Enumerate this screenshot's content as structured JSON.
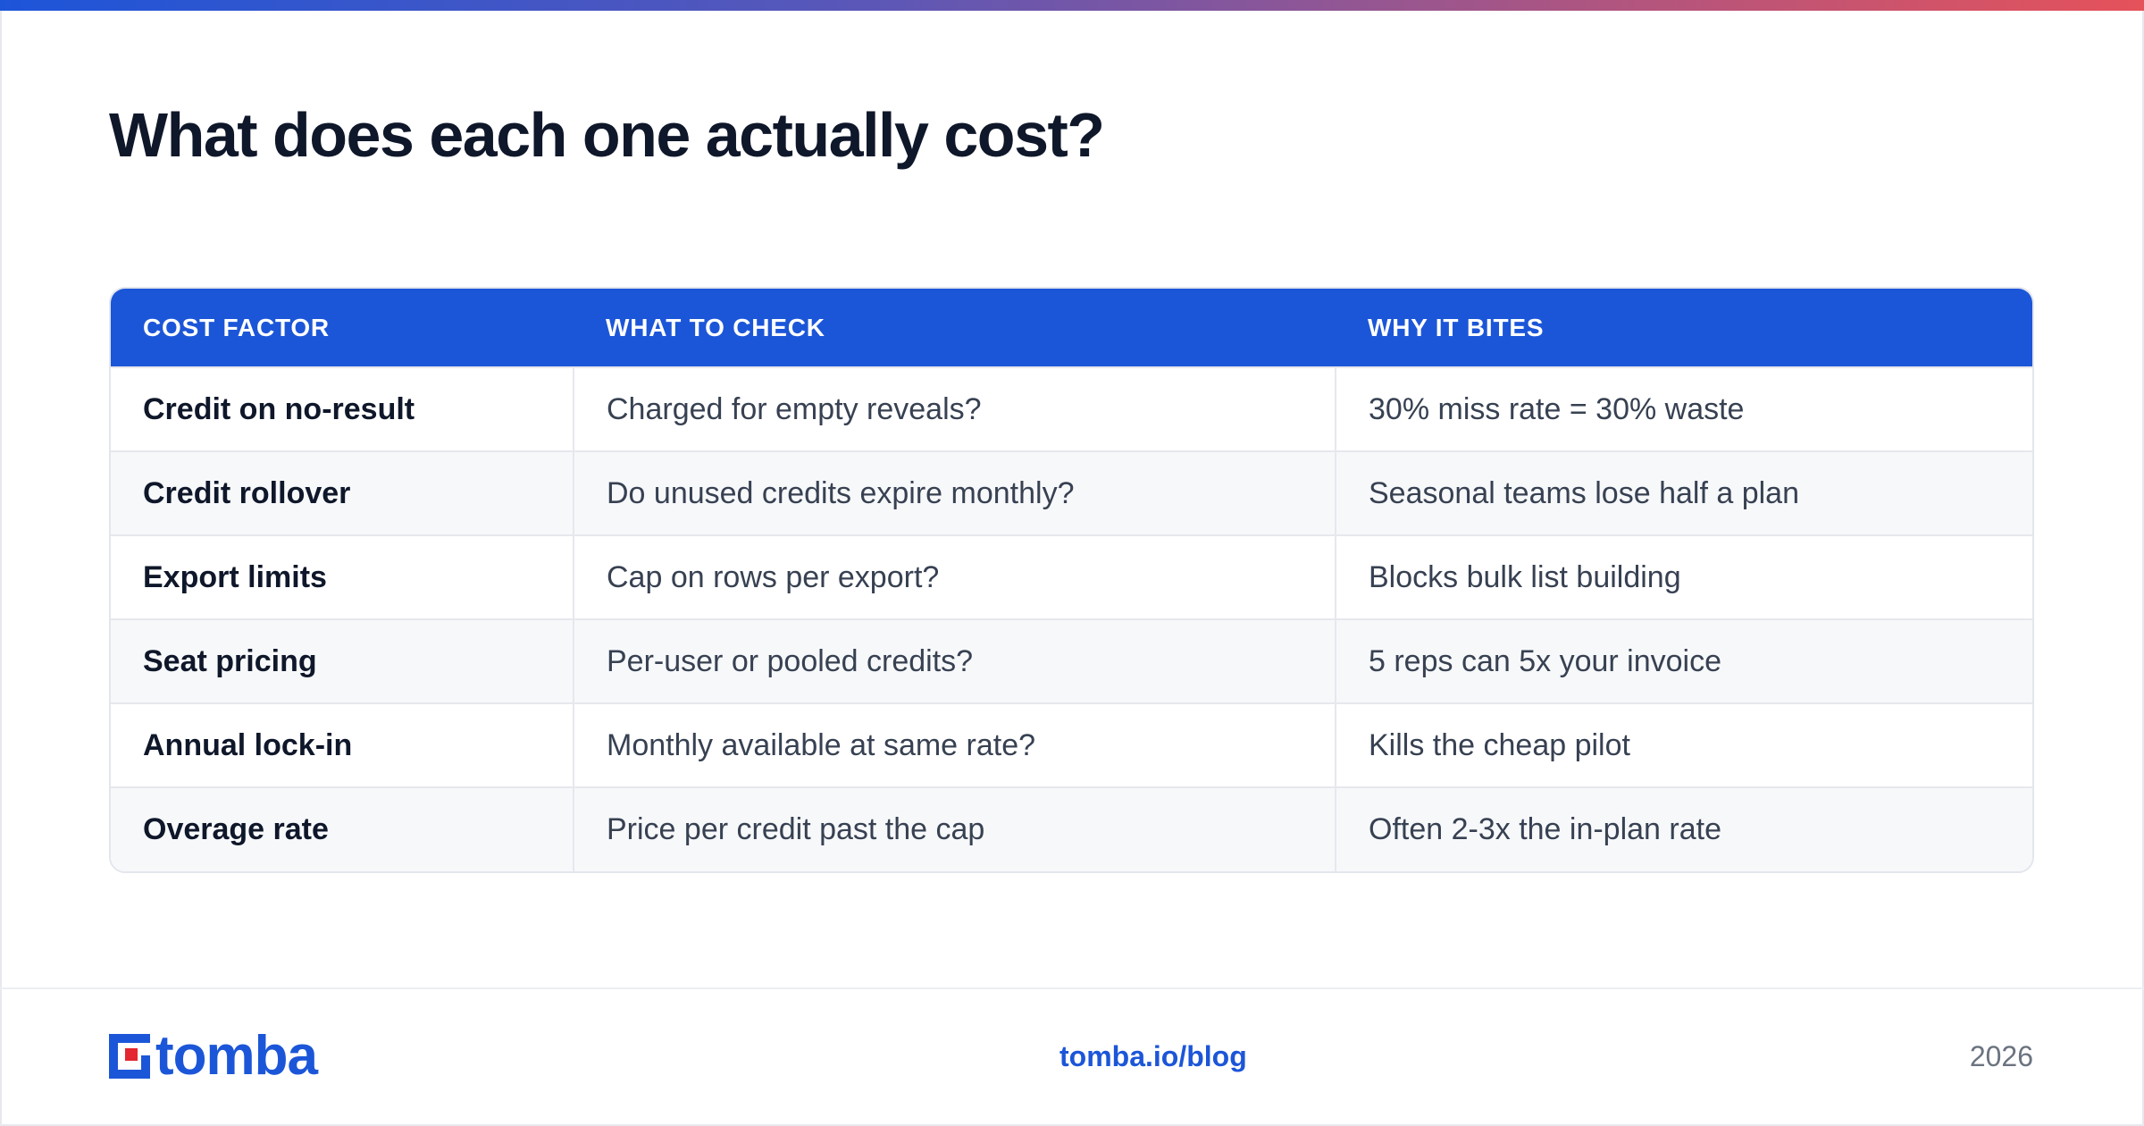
{
  "title": "What does each one actually cost?",
  "table": {
    "headers": [
      "COST FACTOR",
      "WHAT TO CHECK",
      "WHY IT BITES"
    ],
    "rows": [
      [
        "Credit on no-result",
        "Charged for empty reveals?",
        "30% miss rate = 30% waste"
      ],
      [
        "Credit rollover",
        "Do unused credits expire monthly?",
        "Seasonal teams lose half a plan"
      ],
      [
        "Export limits",
        "Cap on rows per export?",
        "Blocks bulk list building"
      ],
      [
        "Seat pricing",
        "Per-user or pooled credits?",
        "5 reps can 5x your invoice"
      ],
      [
        "Annual lock-in",
        "Monthly available at same rate?",
        "Kills the cheap pilot"
      ],
      [
        "Overage rate",
        "Price per credit past the cap",
        "Often 2-3x the in-plan rate"
      ]
    ]
  },
  "footer": {
    "logo_text": "tomba",
    "link": "tomba.io/blog",
    "year": "2026"
  },
  "colors": {
    "accent": "#1c56d8",
    "logo_red": "#e3262f",
    "gradient": [
      "#1d55d9",
      "#e5525a"
    ]
  }
}
